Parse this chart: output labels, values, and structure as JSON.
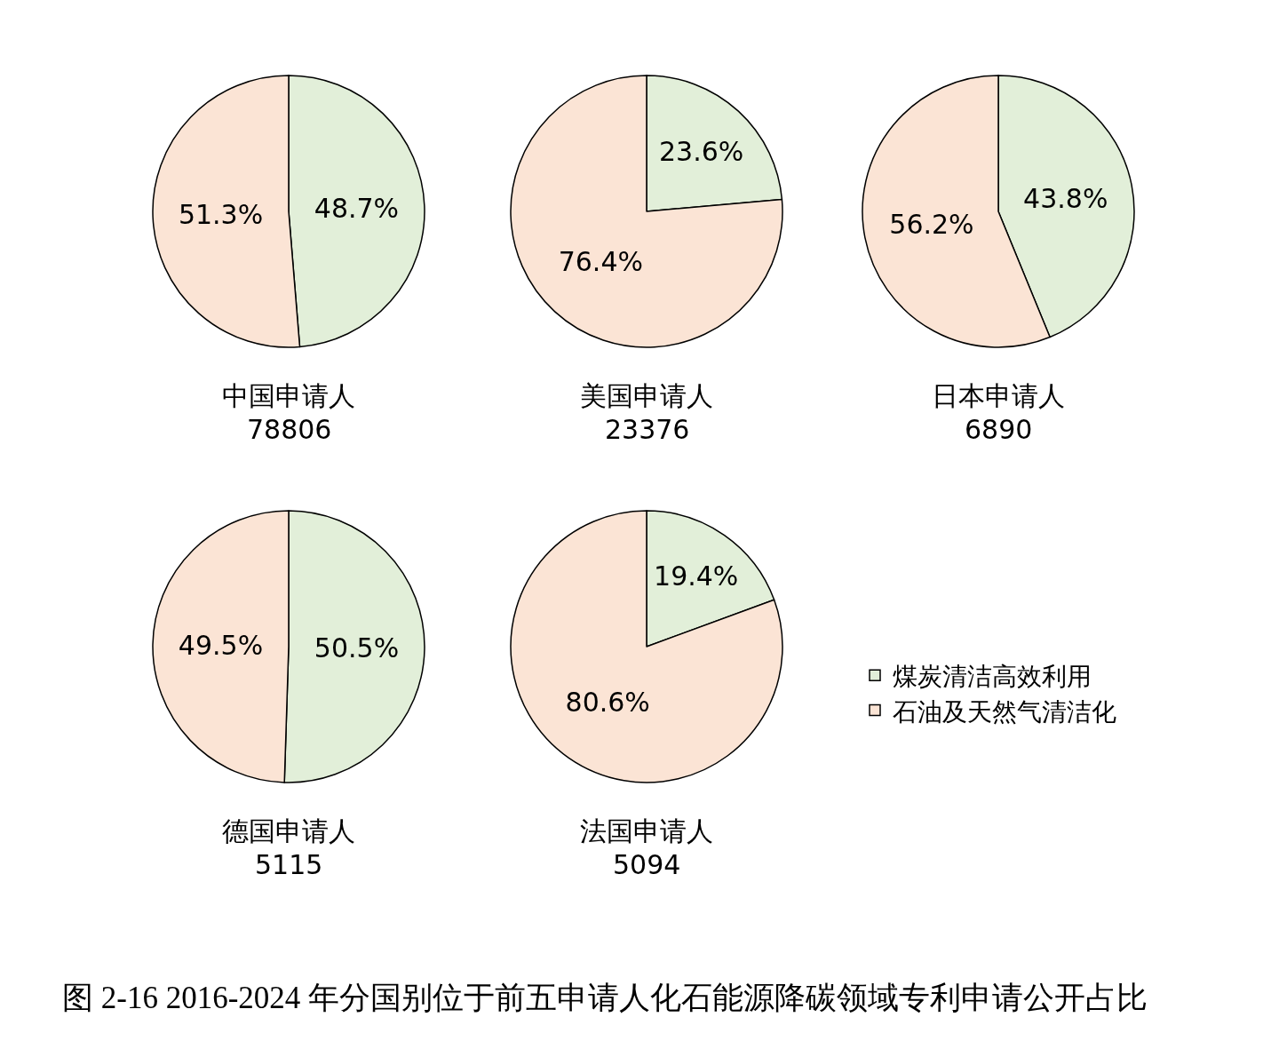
{
  "chart_data": [
    {
      "type": "pie",
      "title": "中国申请人",
      "subtitle": "78806",
      "categories": [
        null,
        null
      ],
      "values": [
        48.7,
        51.3
      ],
      "value_labels": [
        "48.7%",
        "51.3%"
      ],
      "colors": [
        "#e2efd9",
        "#fbe4d5"
      ]
    },
    {
      "type": "pie",
      "title": "美国申请人",
      "subtitle": "23376",
      "categories": [
        null,
        null
      ],
      "values": [
        23.6,
        76.4
      ],
      "value_labels": [
        "23.6%",
        "76.4%"
      ],
      "colors": [
        "#e2efd9",
        "#fbe4d5"
      ]
    },
    {
      "type": "pie",
      "title": "日本申请人",
      "subtitle": "6890",
      "categories": [
        null,
        null
      ],
      "values": [
        43.8,
        56.2
      ],
      "value_labels": [
        "43.8%",
        "56.2%"
      ],
      "colors": [
        "#e2efd9",
        "#fbe4d5"
      ]
    },
    {
      "type": "pie",
      "title": "德国申请人",
      "subtitle": "5115",
      "categories": [
        null,
        null
      ],
      "values": [
        50.5,
        49.5
      ],
      "value_labels": [
        "50.5%",
        "49.5%"
      ],
      "colors": [
        "#e2efd9",
        "#fbe4d5"
      ]
    },
    {
      "type": "pie",
      "title": "法国申请人",
      "subtitle": "5094",
      "categories": [
        "煤炭清洁高效利用",
        "石油及天然气清洁化"
      ],
      "values": [
        19.4,
        80.6
      ],
      "value_labels": [
        "19.4%",
        "80.6%"
      ],
      "colors": [
        "#e2efd9",
        "#fbe4d5"
      ],
      "legend": "right",
      "annotations": [
        "图 2-16 2016-2024 年分国别位于前五申请人化石能源降碳领域专利申请公开占比"
      ]
    }
  ]
}
